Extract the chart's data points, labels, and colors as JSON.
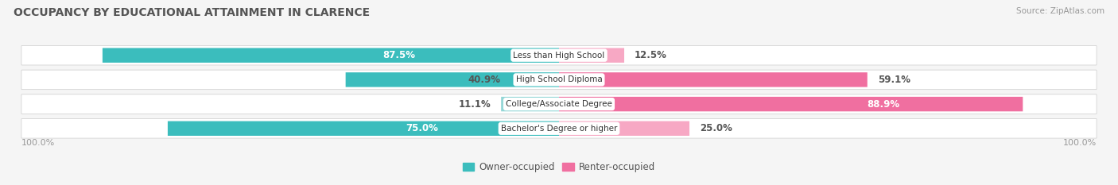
{
  "title": "OCCUPANCY BY EDUCATIONAL ATTAINMENT IN CLARENCE",
  "source": "Source: ZipAtlas.com",
  "categories": [
    "Less than High School",
    "High School Diploma",
    "College/Associate Degree",
    "Bachelor's Degree or higher"
  ],
  "owner_pct": [
    87.5,
    40.9,
    11.1,
    75.0
  ],
  "renter_pct": [
    12.5,
    59.1,
    88.9,
    25.0
  ],
  "owner_colors": [
    "#3bbdbd",
    "#3bbdbd",
    "#93d6d6",
    "#3bbdbd"
  ],
  "renter_colors": [
    "#f7a8c4",
    "#f06fa0",
    "#f06fa0",
    "#f7a8c4"
  ],
  "owner_label_color": [
    "#ffffff",
    "#555555",
    "#555555",
    "#ffffff"
  ],
  "renter_label_color": [
    "#555555",
    "#555555",
    "#ffffff",
    "#555555"
  ],
  "bg_row_color": "#ececec",
  "bg_figure_color": "#f5f5f5",
  "title_color": "#555555",
  "source_color": "#999999",
  "axis_label_color": "#999999",
  "axis_label_left": "100.0%",
  "axis_label_right": "100.0%",
  "legend_owner": "Owner-occupied",
  "legend_renter": "Renter-occupied",
  "legend_owner_color": "#3bbdbd",
  "legend_renter_color": "#f06fa0",
  "figsize": [
    14.06,
    2.33
  ],
  "dpi": 100
}
